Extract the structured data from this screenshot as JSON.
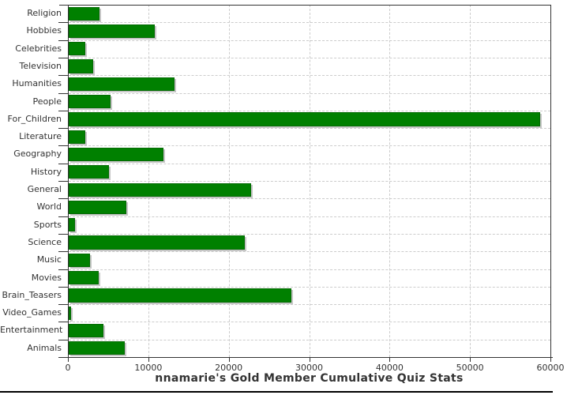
{
  "title": "nnamarie's Gold Member Cumulative Quiz Stats",
  "colors": {
    "bar_fill": "#008000",
    "bar_border": "#046a04",
    "bar_shadow": "#c6c6c6",
    "gridline": "#cccccc",
    "axis": "#333333",
    "text": "#333333",
    "bottom_rule": "#000000",
    "background": "#ffffff"
  },
  "chart_data": {
    "type": "bar",
    "orientation": "horizontal",
    "title": "nnamarie's Gold Member Cumulative Quiz Stats",
    "xlabel": "",
    "ylabel": "",
    "xlim": [
      0,
      60000
    ],
    "x_ticks": [
      0,
      10000,
      20000,
      30000,
      40000,
      50000,
      60000
    ],
    "x_tick_labels": [
      "0",
      "10000",
      "20000",
      "30000",
      "40000",
      "50000",
      "60000"
    ],
    "grid": "dashed",
    "legend": "none",
    "categories": [
      "Religion",
      "Hobbies",
      "Celebrities",
      "Television",
      "Humanities",
      "People",
      "For_Children",
      "Literature",
      "Geography",
      "History",
      "General",
      "World",
      "Sports",
      "Science",
      "Music",
      "Movies",
      "Brain_Teasers",
      "Video_Games",
      "Entertainment",
      "Animals"
    ],
    "values": [
      3800,
      10700,
      2100,
      3000,
      13200,
      5200,
      58600,
      2100,
      11800,
      5000,
      22700,
      7200,
      800,
      21900,
      2700,
      3700,
      27700,
      250,
      4300,
      7000
    ]
  }
}
